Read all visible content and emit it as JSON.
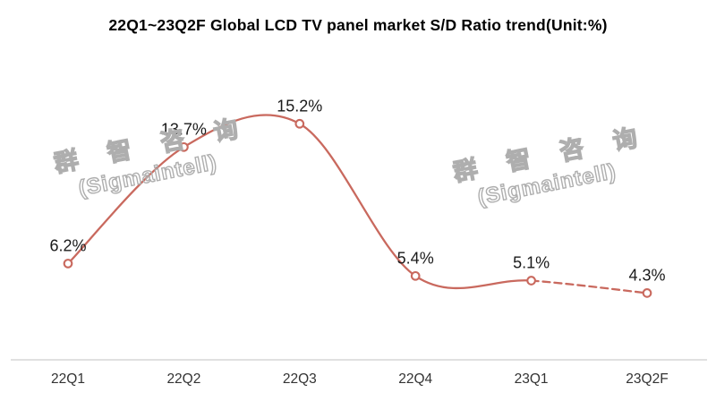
{
  "title": "22Q1~23Q2F Global LCD TV panel market S/D Ratio trend(Unit:%)",
  "watermark": {
    "line1": "群 智 咨 询",
    "line2": "(Sigmaintell)"
  },
  "chart_data": {
    "type": "line",
    "title": "22Q1~23Q2F Global LCD TV panel market S/D Ratio trend(Unit:%)",
    "categories": [
      "22Q1",
      "22Q2",
      "22Q3",
      "22Q4",
      "23Q1",
      "23Q2F"
    ],
    "series": [
      {
        "name": "Global LCD TV panel market S/D Ratio",
        "values": [
          6.2,
          13.7,
          15.2,
          5.4,
          5.1,
          4.3
        ]
      }
    ],
    "data_labels": [
      "6.2%",
      "13.7%",
      "15.2%",
      "5.4%",
      "5.1%",
      "4.3%"
    ],
    "forecast_dashed_from_index": 4,
    "smooth": true,
    "marker": "open-circle",
    "line_color": "#c9695e",
    "marker_fill": "#ffffff",
    "axis_line_color": "#d5d5d5",
    "label_color": "#1a1a1a",
    "axis_label_color": "#333333",
    "xlabel": "",
    "ylabel": "",
    "ylim": [
      0,
      23
    ],
    "grid": false,
    "legend": "none"
  }
}
